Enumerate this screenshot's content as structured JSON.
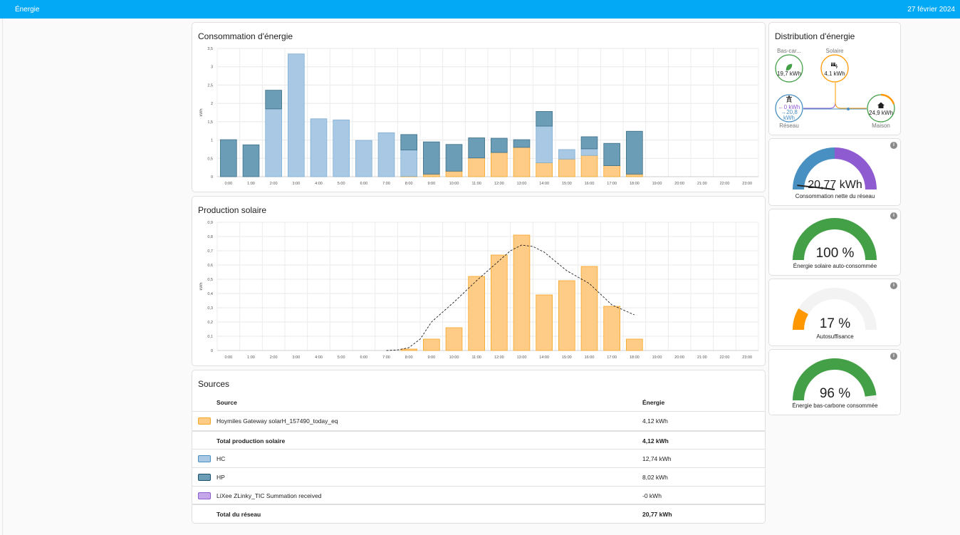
{
  "topbar": {
    "title": "Énergie",
    "date": "27 février 2024"
  },
  "colors": {
    "topbar": "#03a9f4",
    "solar": "#ff9800",
    "solar_bar": "#ffcc88",
    "hc_bar": "#a8c8e3",
    "hp_bar": "#6b9db7",
    "grid_return": "#b39ddb",
    "low_carbon": "#43a047",
    "grid": "#488fc2"
  },
  "consumption": {
    "title": "Consommation d'énergie",
    "chart_data": {
      "type": "bar",
      "stacked": true,
      "categories": [
        "0:00",
        "1:00",
        "2:00",
        "3:00",
        "4:00",
        "5:00",
        "6:00",
        "7:00",
        "8:00",
        "9:00",
        "10:00",
        "11:00",
        "12:00",
        "13:00",
        "14:00",
        "15:00",
        "16:00",
        "17:00",
        "18:00",
        "19:00",
        "20:00",
        "21:00",
        "22:00",
        "23:00"
      ],
      "series": [
        {
          "name": "Hoymiles Gateway solarH_157490_today_eq",
          "color": "#ffcc88",
          "values": [
            0,
            0,
            0,
            0,
            0,
            0,
            0,
            0,
            0.01,
            0.07,
            0.15,
            0.51,
            0.66,
            0.8,
            0.38,
            0.48,
            0.58,
            0.3,
            0.07,
            0,
            0,
            0,
            0,
            0
          ]
        },
        {
          "name": "HC",
          "color": "#a8c8e3",
          "values": [
            0,
            0,
            1.85,
            3.35,
            1.58,
            1.55,
            0.99,
            1.2,
            0.72,
            0,
            0,
            0,
            0,
            0,
            1.0,
            0.26,
            0.18,
            0,
            0,
            0,
            0,
            0,
            0,
            0
          ]
        },
        {
          "name": "HP",
          "color": "#6b9db7",
          "values": [
            1.01,
            0.87,
            0.51,
            0,
            0,
            0,
            0,
            0,
            0.42,
            0.88,
            0.73,
            0.55,
            0.39,
            0.21,
            0.4,
            0,
            0.33,
            0.61,
            1.17,
            0,
            0,
            0,
            0,
            0
          ]
        }
      ],
      "ylabel": "kWh",
      "yticks": [
        "0",
        "0,5",
        "1",
        "1,5",
        "2",
        "2,5",
        "3",
        "3,5"
      ],
      "ylim": [
        0,
        3.5
      ],
      "grid": true
    }
  },
  "solar": {
    "title": "Production solaire",
    "chart_data": {
      "type": "bar",
      "categories": [
        "0:00",
        "1:00",
        "2:00",
        "3:00",
        "4:00",
        "5:00",
        "6:00",
        "7:00",
        "8:00",
        "9:00",
        "10:00",
        "11:00",
        "12:00",
        "13:00",
        "14:00",
        "15:00",
        "16:00",
        "17:00",
        "18:00",
        "19:00",
        "20:00",
        "21:00",
        "22:00",
        "23:00"
      ],
      "series": [
        {
          "name": "Hoymiles Gateway solarH_157490_today_eq",
          "color": "#ffcc88",
          "values": [
            0,
            0,
            0,
            0,
            0,
            0,
            0,
            0,
            0.01,
            0.08,
            0.16,
            0.52,
            0.67,
            0.81,
            0.39,
            0.49,
            0.59,
            0.31,
            0.08,
            0,
            0,
            0,
            0,
            0
          ]
        }
      ],
      "forecast": {
        "style": "dashed",
        "x": [
          "7:00",
          "7:30",
          "8:00",
          "8:30",
          "9:00",
          "10:00",
          "11:00",
          "12:00",
          "12:30",
          "13:00",
          "13:30",
          "14:00",
          "15:00",
          "16:00",
          "17:00",
          "18:00"
        ],
        "values": [
          0,
          0.004,
          0.02,
          0.08,
          0.2,
          0.34,
          0.49,
          0.63,
          0.7,
          0.74,
          0.73,
          0.69,
          0.56,
          0.47,
          0.32,
          0.25
        ]
      },
      "ylabel": "kWh",
      "yticks": [
        "0",
        "0,1",
        "0,2",
        "0,3",
        "0,4",
        "0,5",
        "0,6",
        "0,7",
        "0,8",
        "0,9"
      ],
      "ylim": [
        0,
        0.9
      ],
      "grid": true
    }
  },
  "sources": {
    "title": "Sources",
    "col_source": "Source",
    "col_energy": "Énergie",
    "rows": [
      {
        "name": "Hoymiles Gateway solarH_157490_today_eq",
        "energy": "4,12 kWh",
        "total": false,
        "fill": "#ffcc88",
        "border": "#f5a623"
      },
      {
        "name": "Total production solaire",
        "energy": "4,12 kWh",
        "total": true
      },
      {
        "name": "HC",
        "energy": "12,74 kWh",
        "total": false,
        "fill": "#a8c8e3",
        "border": "#488fc2"
      },
      {
        "name": "HP",
        "energy": "8,02 kWh",
        "total": false,
        "fill": "#6b9db7",
        "border": "#1b4f6b"
      },
      {
        "name": "LiXee ZLinky_TIC Summation received",
        "energy": "-0 kWh",
        "total": false,
        "fill": "#c5a8e8",
        "border": "#8e5bd1"
      },
      {
        "name": "Total du réseau",
        "energy": "20,77 kWh",
        "total": true
      }
    ]
  },
  "distribution": {
    "title": "Distribution d'énergie",
    "low_carbon": {
      "label": "Bas-car...",
      "value": "19,7 kWh",
      "icon": "leaf-icon"
    },
    "solar": {
      "label": "Solaire",
      "value": "4,1 kWh",
      "icon": "solar-panel-icon"
    },
    "grid": {
      "label": "Réseau",
      "return": "←0 kWh",
      "import": "→20,8 kWh",
      "icon": "transmission-tower-icon"
    },
    "home": {
      "label": "Maison",
      "value": "24,9 kWh",
      "icon": "home-icon"
    }
  },
  "gauges": [
    {
      "value": "20,77 kWh",
      "label": "Consommation nette du réseau",
      "type": "split",
      "fill": 1.0
    },
    {
      "value": "100 %",
      "label": "Énergie solaire auto-consommée",
      "type": "single",
      "color": "#43a047",
      "fill": 1.0
    },
    {
      "value": "17 %",
      "label": "Autosuffisance",
      "type": "single",
      "color": "#ff9800",
      "fill": 0.17
    },
    {
      "value": "96 %",
      "label": "Énergie bas-carbone consommée",
      "type": "single",
      "color": "#43a047",
      "fill": 0.96
    }
  ]
}
